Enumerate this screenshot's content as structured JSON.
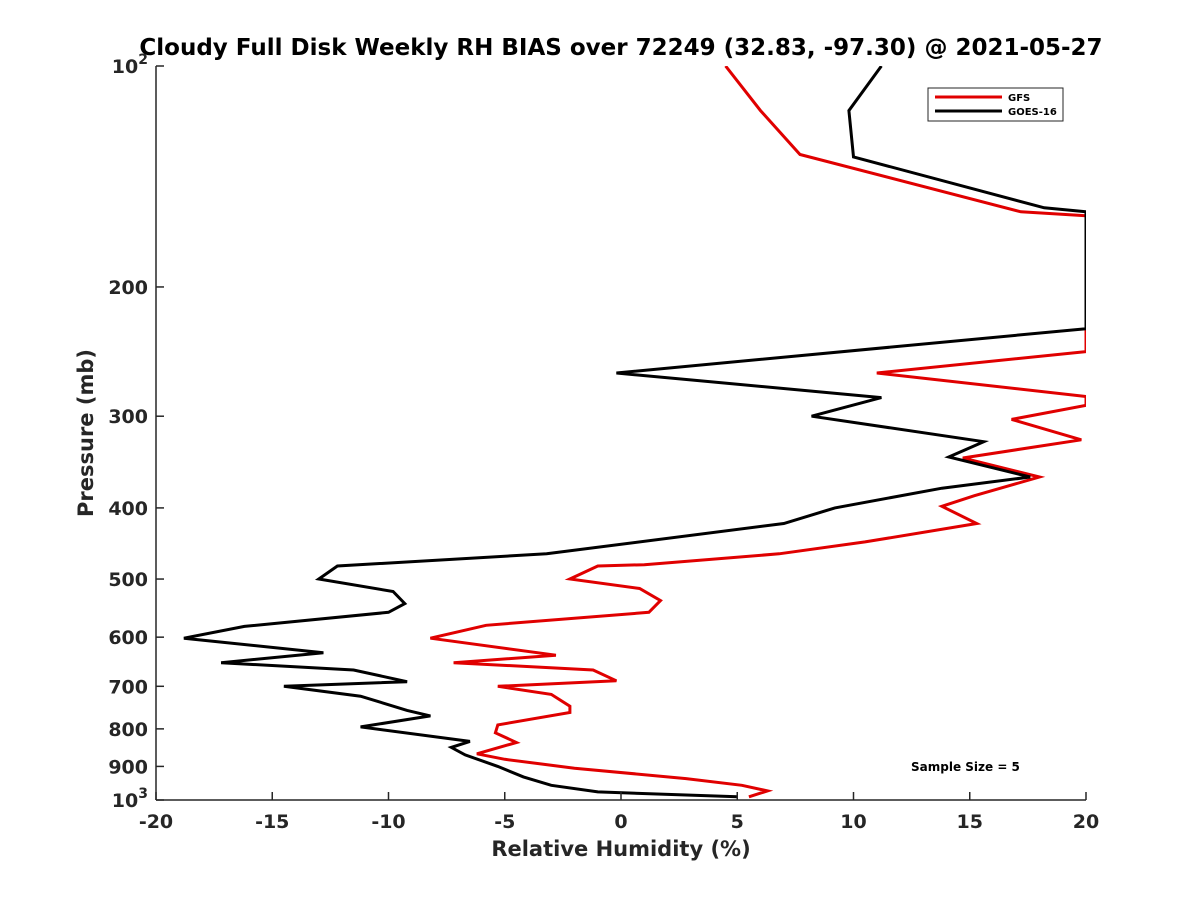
{
  "chart_data": {
    "type": "line",
    "title": "Cloudy Full Disk Weekly RH BIAS over 72249 (32.83, -97.30) @ 2021-05-27",
    "xlabel": "Relative Humidity (%)",
    "ylabel": "Pressure (mb)",
    "xlim": [
      -20,
      20
    ],
    "ylim": [
      100,
      1000
    ],
    "y_scale": "log",
    "y_reversed": true,
    "grid": false,
    "legend_position": "top-right",
    "x_ticks": [
      -20,
      -15,
      -10,
      -5,
      0,
      5,
      10,
      15,
      20
    ],
    "y_ticks": [
      100,
      200,
      300,
      400,
      500,
      600,
      700,
      800,
      900,
      1000
    ],
    "y_tick_labels": [
      "10^2",
      "200",
      "300",
      "400",
      "500",
      "600",
      "700",
      "800",
      "900",
      "10^3"
    ],
    "annotation": "Sample Size = 5",
    "series": [
      {
        "name": "GFS",
        "color": "#e00000",
        "points": [
          [
            4.5,
            100
          ],
          [
            6.0,
            115
          ],
          [
            7.7,
            132
          ],
          [
            17.2,
            158
          ],
          [
            20.0,
            160
          ],
          [
            20.0,
            245
          ],
          [
            11.0,
            262
          ],
          [
            20.0,
            282
          ],
          [
            20.0,
            290
          ],
          [
            16.8,
            303
          ],
          [
            19.8,
            323
          ],
          [
            14.7,
            342
          ],
          [
            18.0,
            363
          ],
          [
            15.2,
            385
          ],
          [
            13.8,
            398
          ],
          [
            15.3,
            420
          ],
          [
            10.5,
            445
          ],
          [
            6.8,
            462
          ],
          [
            1.0,
            478
          ],
          [
            -1.0,
            480
          ],
          [
            -2.2,
            500
          ],
          [
            0.8,
            515
          ],
          [
            1.7,
            535
          ],
          [
            1.2,
            555
          ],
          [
            -5.8,
            578
          ],
          [
            -8.2,
            602
          ],
          [
            -2.8,
            635
          ],
          [
            -7.2,
            650
          ],
          [
            -1.2,
            665
          ],
          [
            -0.2,
            688
          ],
          [
            -5.3,
            700
          ],
          [
            -3.0,
            718
          ],
          [
            -2.2,
            745
          ],
          [
            -2.2,
            760
          ],
          [
            -5.3,
            790
          ],
          [
            -5.4,
            810
          ],
          [
            -4.5,
            835
          ],
          [
            -6.2,
            865
          ],
          [
            -5.0,
            880
          ],
          [
            -2.0,
            905
          ],
          [
            2.8,
            935
          ],
          [
            5.2,
            955
          ],
          [
            6.3,
            972
          ],
          [
            5.5,
            990
          ]
        ]
      },
      {
        "name": "GOES-16",
        "color": "#000000",
        "points": [
          [
            11.2,
            100
          ],
          [
            9.8,
            115
          ],
          [
            10.0,
            133
          ],
          [
            18.2,
            156
          ],
          [
            20.0,
            158
          ],
          [
            20.0,
            228
          ],
          [
            -0.2,
            262
          ],
          [
            11.2,
            283
          ],
          [
            8.2,
            300
          ],
          [
            15.6,
            325
          ],
          [
            14.1,
            341
          ],
          [
            17.6,
            363
          ],
          [
            13.8,
            376
          ],
          [
            9.2,
            400
          ],
          [
            7.0,
            420
          ],
          [
            -3.2,
            462
          ],
          [
            -12.2,
            480
          ],
          [
            -13.0,
            500
          ],
          [
            -9.8,
            520
          ],
          [
            -9.3,
            540
          ],
          [
            -10.0,
            555
          ],
          [
            -16.2,
            580
          ],
          [
            -18.8,
            602
          ],
          [
            -12.8,
            630
          ],
          [
            -17.2,
            650
          ],
          [
            -11.5,
            665
          ],
          [
            -9.2,
            690
          ],
          [
            -14.5,
            700
          ],
          [
            -11.2,
            722
          ],
          [
            -9.2,
            755
          ],
          [
            -8.2,
            768
          ],
          [
            -11.2,
            795
          ],
          [
            -6.5,
            832
          ],
          [
            -7.3,
            848
          ],
          [
            -6.7,
            868
          ],
          [
            -5.3,
            900
          ],
          [
            -4.2,
            930
          ],
          [
            -3.0,
            955
          ],
          [
            -1.0,
            975
          ],
          [
            5.0,
            990
          ]
        ]
      }
    ]
  }
}
